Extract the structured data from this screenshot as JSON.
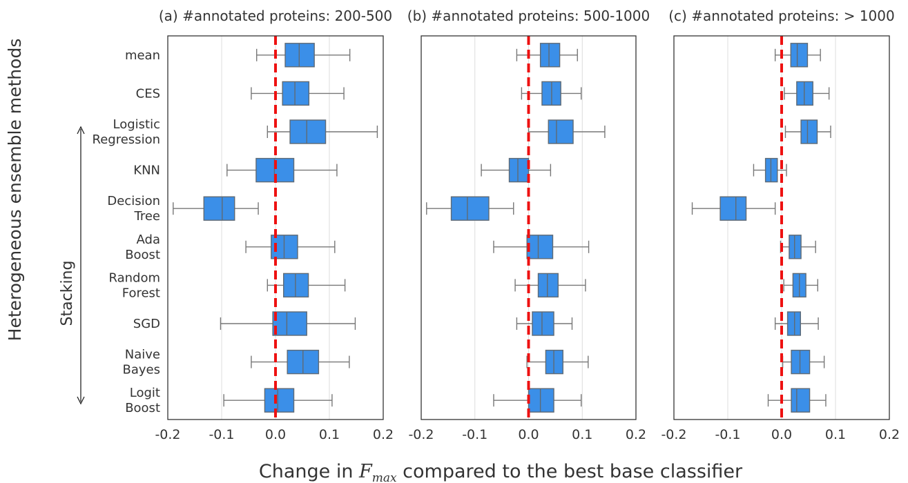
{
  "figure": {
    "ylabel": "Heterogeneous ensemble methods",
    "xlabel_prefix": "Change in ",
    "xlabel_var": "F",
    "xlabel_sub": "max",
    "xlabel_suffix": " compared to the best base classifier",
    "bracket_label": "Stacking",
    "bracket_items": [
      "Logistic Regression",
      "KNN",
      "Decision Tree",
      "Ada Boost",
      "Random Forest",
      "SGD",
      "Naive Bayes",
      "Logit Boost"
    ]
  },
  "chart_data": [
    {
      "type": "box",
      "title": "(a) #annotated proteins: 200-500",
      "categories": [
        "mean",
        "CES",
        "Logistic Regression",
        "KNN",
        "Decision Tree",
        "Ada Boost",
        "Random Forest",
        "SGD",
        "Naive Bayes",
        "Logit Boost"
      ],
      "boxes": [
        {
          "whislo": -0.035,
          "q1": 0.018,
          "med": 0.044,
          "q3": 0.072,
          "whishi": 0.138
        },
        {
          "whislo": -0.045,
          "q1": 0.013,
          "med": 0.036,
          "q3": 0.062,
          "whishi": 0.127
        },
        {
          "whislo": -0.015,
          "q1": 0.027,
          "med": 0.058,
          "q3": 0.093,
          "whishi": 0.189
        },
        {
          "whislo": -0.09,
          "q1": -0.036,
          "med": -0.002,
          "q3": 0.034,
          "whishi": 0.114
        },
        {
          "whislo": -0.19,
          "q1": -0.133,
          "med": -0.099,
          "q3": -0.076,
          "whishi": -0.032
        },
        {
          "whislo": -0.055,
          "q1": -0.008,
          "med": 0.016,
          "q3": 0.041,
          "whishi": 0.11
        },
        {
          "whislo": -0.015,
          "q1": 0.015,
          "med": 0.037,
          "q3": 0.061,
          "whishi": 0.129
        },
        {
          "whislo": -0.102,
          "q1": -0.005,
          "med": 0.021,
          "q3": 0.058,
          "whishi": 0.148
        },
        {
          "whislo": -0.045,
          "q1": 0.022,
          "med": 0.051,
          "q3": 0.08,
          "whishi": 0.137
        },
        {
          "whislo": -0.096,
          "q1": -0.02,
          "med": 0.004,
          "q3": 0.034,
          "whishi": 0.105
        }
      ],
      "xlim": [
        -0.2,
        0.2
      ],
      "xticks": [
        "-0.2",
        "-0.1",
        "0.0",
        "0.1",
        "0.2"
      ],
      "reference_line": 0.0
    },
    {
      "type": "box",
      "title": "(b) #annotated proteins: 500-1000",
      "categories": [
        "mean",
        "CES",
        "Logistic Regression",
        "KNN",
        "Decision Tree",
        "Ada Boost",
        "Random Forest",
        "SGD",
        "Naive Bayes",
        "Logit Boost"
      ],
      "boxes": [
        {
          "whislo": -0.022,
          "q1": 0.022,
          "med": 0.038,
          "q3": 0.058,
          "whishi": 0.091
        },
        {
          "whislo": -0.013,
          "q1": 0.025,
          "med": 0.043,
          "q3": 0.06,
          "whishi": 0.098
        },
        {
          "whislo": 0.0,
          "q1": 0.037,
          "med": 0.052,
          "q3": 0.083,
          "whishi": 0.142
        },
        {
          "whislo": -0.088,
          "q1": -0.036,
          "med": -0.02,
          "q3": 0.0,
          "whishi": 0.041
        },
        {
          "whislo": -0.19,
          "q1": -0.144,
          "med": -0.114,
          "q3": -0.074,
          "whishi": -0.028
        },
        {
          "whislo": -0.065,
          "q1": -0.003,
          "med": 0.018,
          "q3": 0.045,
          "whishi": 0.112
        },
        {
          "whislo": -0.025,
          "q1": 0.018,
          "med": 0.035,
          "q3": 0.055,
          "whishi": 0.106
        },
        {
          "whislo": -0.022,
          "q1": 0.007,
          "med": 0.025,
          "q3": 0.047,
          "whishi": 0.081
        },
        {
          "whislo": -0.003,
          "q1": 0.032,
          "med": 0.047,
          "q3": 0.064,
          "whishi": 0.111
        },
        {
          "whislo": -0.065,
          "q1": 0.0,
          "med": 0.022,
          "q3": 0.047,
          "whishi": 0.098
        }
      ],
      "xlim": [
        -0.2,
        0.2
      ],
      "xticks": [
        "-0.2",
        "-0.1",
        "0.0",
        "0.1",
        "0.2"
      ],
      "reference_line": 0.0
    },
    {
      "type": "box",
      "title": "(c) #annotated proteins: > 1000",
      "categories": [
        "mean",
        "CES",
        "Logistic Regression",
        "KNN",
        "Decision Tree",
        "Ada Boost",
        "Random Forest",
        "SGD",
        "Naive Bayes",
        "Logit Boost"
      ],
      "boxes": [
        {
          "whislo": -0.012,
          "q1": 0.017,
          "med": 0.029,
          "q3": 0.048,
          "whishi": 0.072
        },
        {
          "whislo": 0.005,
          "q1": 0.028,
          "med": 0.042,
          "q3": 0.058,
          "whishi": 0.088
        },
        {
          "whislo": 0.007,
          "q1": 0.036,
          "med": 0.048,
          "q3": 0.066,
          "whishi": 0.091
        },
        {
          "whislo": -0.052,
          "q1": -0.03,
          "med": -0.02,
          "q3": -0.008,
          "whishi": 0.009
        },
        {
          "whislo": -0.166,
          "q1": -0.114,
          "med": -0.085,
          "q3": -0.066,
          "whishi": -0.012
        },
        {
          "whislo": -0.002,
          "q1": 0.014,
          "med": 0.024,
          "q3": 0.036,
          "whishi": 0.063
        },
        {
          "whislo": 0.004,
          "q1": 0.021,
          "med": 0.033,
          "q3": 0.045,
          "whishi": 0.067
        },
        {
          "whislo": -0.012,
          "q1": 0.011,
          "med": 0.024,
          "q3": 0.035,
          "whishi": 0.068
        },
        {
          "whislo": 0.002,
          "q1": 0.018,
          "med": 0.034,
          "q3": 0.052,
          "whishi": 0.079
        },
        {
          "whislo": -0.025,
          "q1": 0.018,
          "med": 0.028,
          "q3": 0.052,
          "whishi": 0.082
        }
      ],
      "xlim": [
        -0.2,
        0.2
      ],
      "xticks": [
        "-0.2",
        "-0.1",
        "0.0",
        "0.1",
        "0.2"
      ],
      "reference_line": 0.0
    }
  ],
  "colors": {
    "box_fill": "#3b8fe8",
    "box_edge": "#5f6a74",
    "whisker": "#777777",
    "reference_line": "#ee1111",
    "grid": "#dcdcdc",
    "frame": "#333333",
    "text": "#333333"
  }
}
